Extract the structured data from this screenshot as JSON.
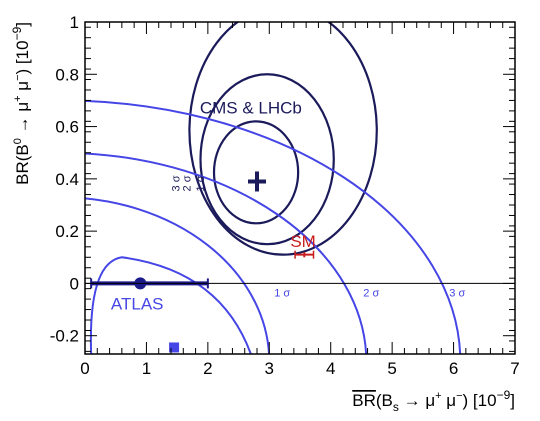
{
  "chart_data": {
    "type": "scatter",
    "xlabel": {
      "pre": "BR",
      "over": "BR",
      "args": "(B",
      "sub": "s",
      "mid": " → μ",
      "sup1": "+",
      "mu2": " μ",
      "sup2": "−",
      "close": ") [10",
      "exp": "−9",
      "end": "]"
    },
    "ylabel": {
      "pre": "BR(B",
      "sup0": "0",
      "mid": " → μ",
      "sup1": "+",
      "mu2": " μ",
      "sup2": "−",
      "close": ") [10",
      "exp": "−9",
      "end": "]"
    },
    "xlim": [
      0,
      7
    ],
    "ylim": [
      -0.27,
      1.0
    ],
    "x_ticks": [
      "0",
      "1",
      "2",
      "3",
      "4",
      "5",
      "6",
      "7"
    ],
    "y_ticks": [
      "-0.2",
      "0",
      "0.2",
      "0.4",
      "0.6",
      "0.8",
      "1"
    ],
    "x_tick_values": [
      0,
      1,
      2,
      3,
      4,
      5,
      6,
      7
    ],
    "y_tick_values": [
      -0.2,
      0,
      0.2,
      0.4,
      0.6,
      0.8,
      1.0
    ],
    "colors": {
      "cms": "#1b1a5a",
      "atlas": "#4646e6",
      "sm": "#c81e1e",
      "axis": "#000000"
    },
    "cms_lhcb": {
      "label": "CMS & LHCb",
      "best_fit": {
        "x": 2.8,
        "y": 0.39
      },
      "contours": [
        {
          "label": "1 σ",
          "x": [
            2.1,
            3.47
          ],
          "y": [
            0.23,
            0.62
          ]
        },
        {
          "label": "2 σ",
          "x": [
            1.88,
            4.05
          ],
          "y": [
            0.15,
            0.8
          ]
        },
        {
          "label": "3 σ",
          "x": [
            1.7,
            4.75
          ],
          "y": [
            0.11,
            1.06
          ]
        }
      ]
    },
    "atlas": {
      "label": "ATLAS",
      "best_fit": {
        "x": 0.9,
        "y": 0.0,
        "x_err": [
          0.1,
          2.0
        ]
      },
      "secondary_marker": {
        "x": 1.45,
        "y": -0.245
      },
      "contours": [
        {
          "label": "1 σ",
          "x_zero": 2.95
        },
        {
          "label": "2 σ",
          "x_zero": 4.4
        },
        {
          "label": "3 σ",
          "x_zero": 5.8
        }
      ]
    },
    "sm": {
      "label": "SM",
      "x": 3.57,
      "y": 0.11,
      "x_err": [
        3.42,
        3.72
      ],
      "y_err": 0.01
    }
  }
}
